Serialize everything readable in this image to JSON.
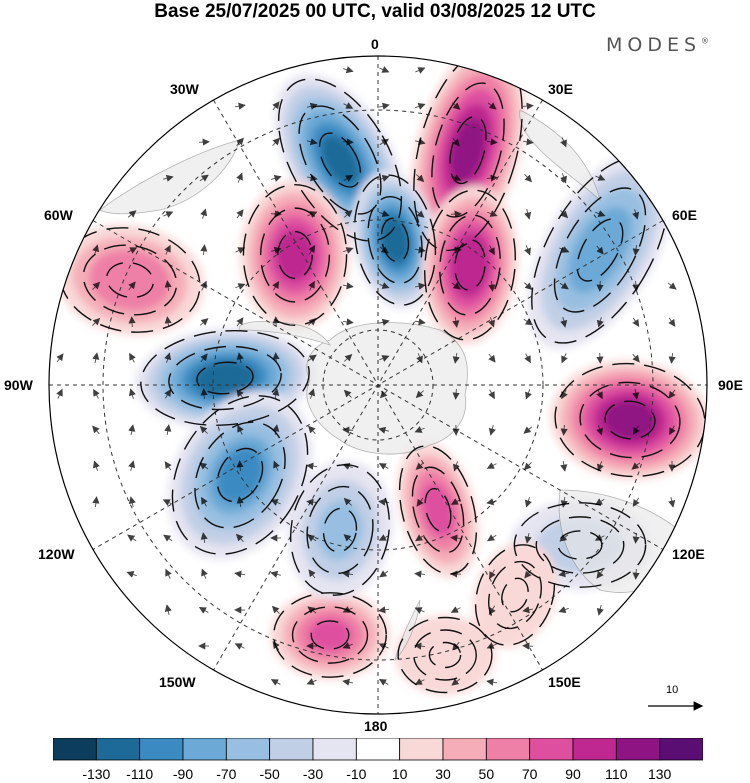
{
  "title": "Base 25/07/2025 00 UTC, valid 03/08/2025 12 UTC",
  "brand": "MODES",
  "brand_mark": "®",
  "longitude_labels": {
    "n0": "0",
    "e30": "30E",
    "e60": "60E",
    "e90": "90E",
    "e120": "120E",
    "e150": "150E",
    "s180": "180",
    "w150": "150W",
    "w120": "120W",
    "w90": "90W",
    "w60": "60W",
    "w30": "30W"
  },
  "vector_reference": "10",
  "colorbar": {
    "colors": [
      "#0d3d5c",
      "#1d6a98",
      "#3b8bc2",
      "#6ca9d6",
      "#98bfe1",
      "#c1cfe6",
      "#e5e4f1",
      "#ffffff",
      "#f9d9d8",
      "#f5aeb8",
      "#ee7fa6",
      "#de4fa0",
      "#be2890",
      "#8f1483",
      "#5a0d72"
    ],
    "tick_labels": [
      "-130",
      "-110",
      "-90",
      "-70",
      "-50",
      "-30",
      "-10",
      "10",
      "30",
      "50",
      "70",
      "90",
      "110",
      "130"
    ]
  },
  "anomalies": [
    {
      "sign": "neg",
      "value": -115
    },
    {
      "sign": "pos",
      "value": 115
    },
    {
      "sign": "neg",
      "value": -125
    },
    {
      "sign": "pos",
      "value": 110
    },
    {
      "sign": "neg",
      "value": -85
    },
    {
      "sign": "pos",
      "value": 100
    },
    {
      "sign": "pos",
      "value": 70
    },
    {
      "sign": "neg",
      "value": -125
    },
    {
      "sign": "pos",
      "value": 120
    },
    {
      "sign": "neg",
      "value": -90
    },
    {
      "sign": "pos",
      "value": 80
    },
    {
      "sign": "pos",
      "value": 75
    },
    {
      "sign": "neg",
      "value": -40
    },
    {
      "sign": "neg",
      "value": -55
    },
    {
      "sign": "pos",
      "value": 20
    },
    {
      "sign": "pos",
      "value": 25
    }
  ]
}
